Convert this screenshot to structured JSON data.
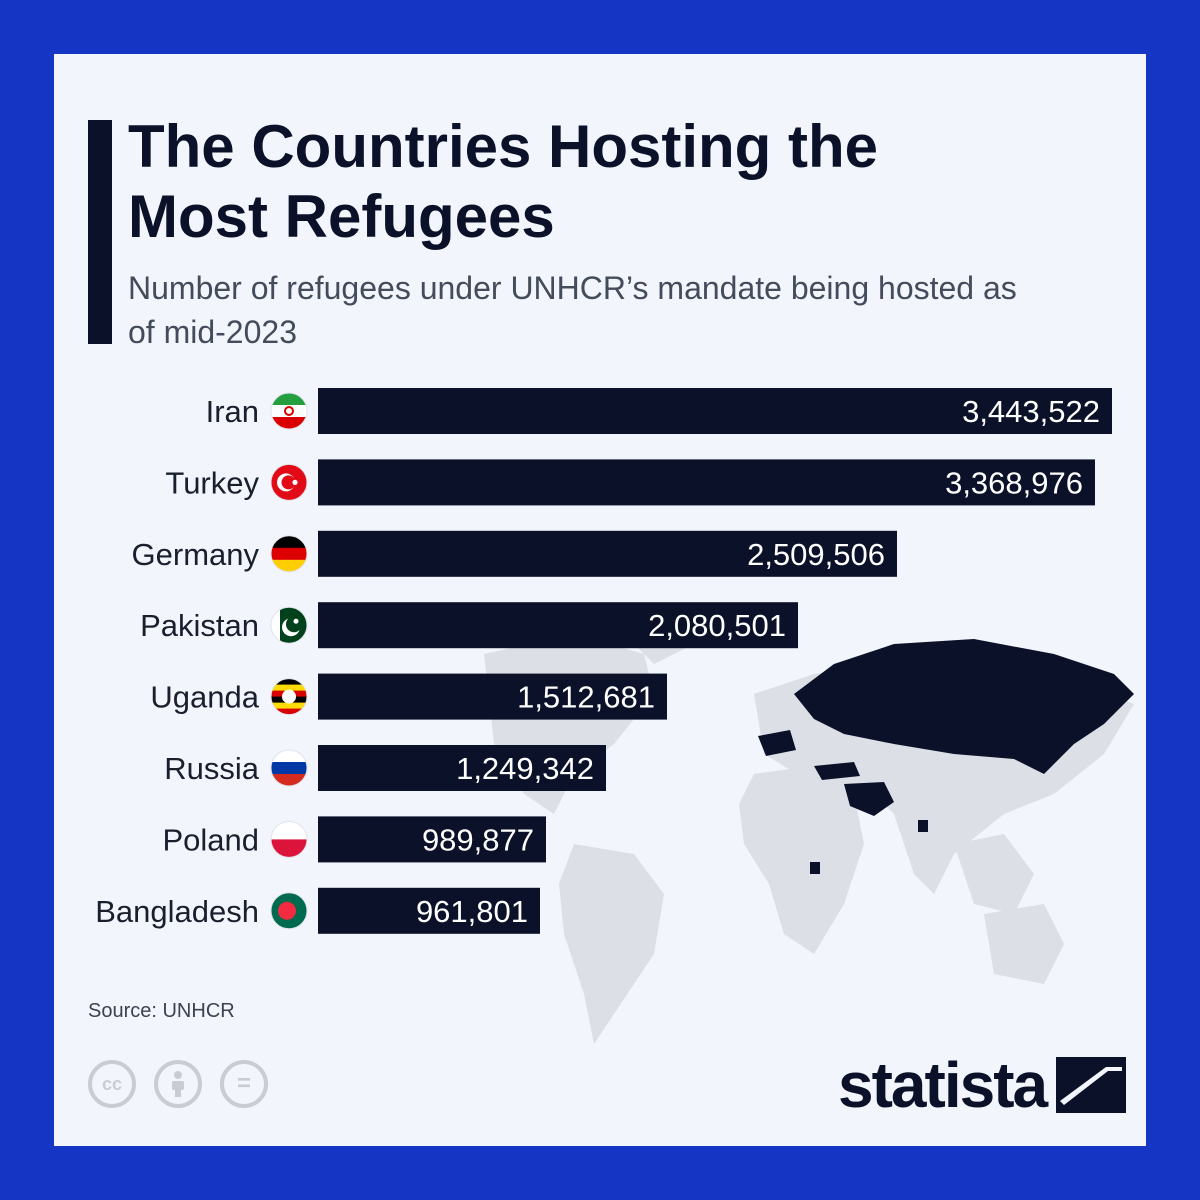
{
  "header": {
    "title": "The Countries Hosting the Most Refugees",
    "subtitle": "Number of refugees under UNHCR’s mandate being hosted as of mid-2023"
  },
  "footer": {
    "source": "Source: UNHCR",
    "brand": "statista",
    "license_icons": [
      "cc-icon",
      "attribution-icon",
      "no-derivatives-icon"
    ],
    "license_labels": [
      "cc",
      "",
      "="
    ]
  },
  "colors": {
    "background_frame": "#1535c4",
    "card": "#f2f5fb",
    "bar": "#0b1128",
    "map_highlight": "#0b1128",
    "map_base": "#dcdfe5"
  },
  "chart_data": {
    "type": "bar",
    "orientation": "horizontal",
    "title": "The Countries Hosting the Most Refugees",
    "subtitle": "Number of refugees under UNHCR’s mandate being hosted as of mid-2023",
    "categories": [
      "Iran",
      "Turkey",
      "Germany",
      "Pakistan",
      "Uganda",
      "Russia",
      "Poland",
      "Bangladesh"
    ],
    "values": [
      3443522,
      3368976,
      2509506,
      2080501,
      1512681,
      1249342,
      989877,
      961801
    ],
    "value_labels": [
      "3,443,522",
      "3,368,976",
      "2,509,506",
      "2,080,501",
      "1,512,681",
      "1,249,342",
      "989,877",
      "961,801"
    ],
    "flags": [
      "iran-flag-icon",
      "turkey-flag-icon",
      "germany-flag-icon",
      "pakistan-flag-icon",
      "uganda-flag-icon",
      "russia-flag-icon",
      "poland-flag-icon",
      "bangladesh-flag-icon"
    ],
    "xlim": [
      0,
      3443522
    ],
    "grid": false,
    "legend": "none"
  }
}
